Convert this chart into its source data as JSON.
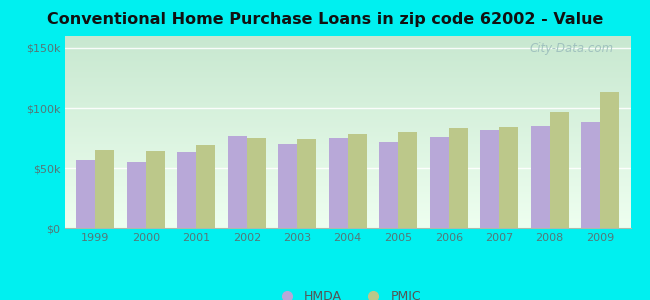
{
  "title": "Conventional Home Purchase Loans in zip code 62002 - Value",
  "years": [
    1999,
    2000,
    2001,
    2002,
    2003,
    2004,
    2005,
    2006,
    2007,
    2008,
    2009
  ],
  "hmda_values": [
    57000,
    55000,
    63000,
    77000,
    70000,
    75000,
    72000,
    76000,
    82000,
    85000,
    88000
  ],
  "pmic_values": [
    65000,
    64000,
    69000,
    75000,
    74000,
    78000,
    80000,
    83000,
    84000,
    97000,
    113000
  ],
  "hmda_color": "#b8a8d8",
  "pmic_color": "#bcc88a",
  "outer_bg": "#00f0f0",
  "plot_bg_top": "#c8e8d0",
  "plot_bg_bottom": "#eefff0",
  "ylim": [
    0,
    160000
  ],
  "yticks": [
    0,
    50000,
    100000,
    150000
  ],
  "ytick_labels": [
    "$0",
    "$50k",
    "$100k",
    "$150k"
  ],
  "title_fontsize": 11.5,
  "tick_fontsize": 8,
  "tick_color": "#557777",
  "legend_labels": [
    "HMDA",
    "PMIC"
  ],
  "watermark": "City-Data.com",
  "watermark_color": "#99bbbb"
}
